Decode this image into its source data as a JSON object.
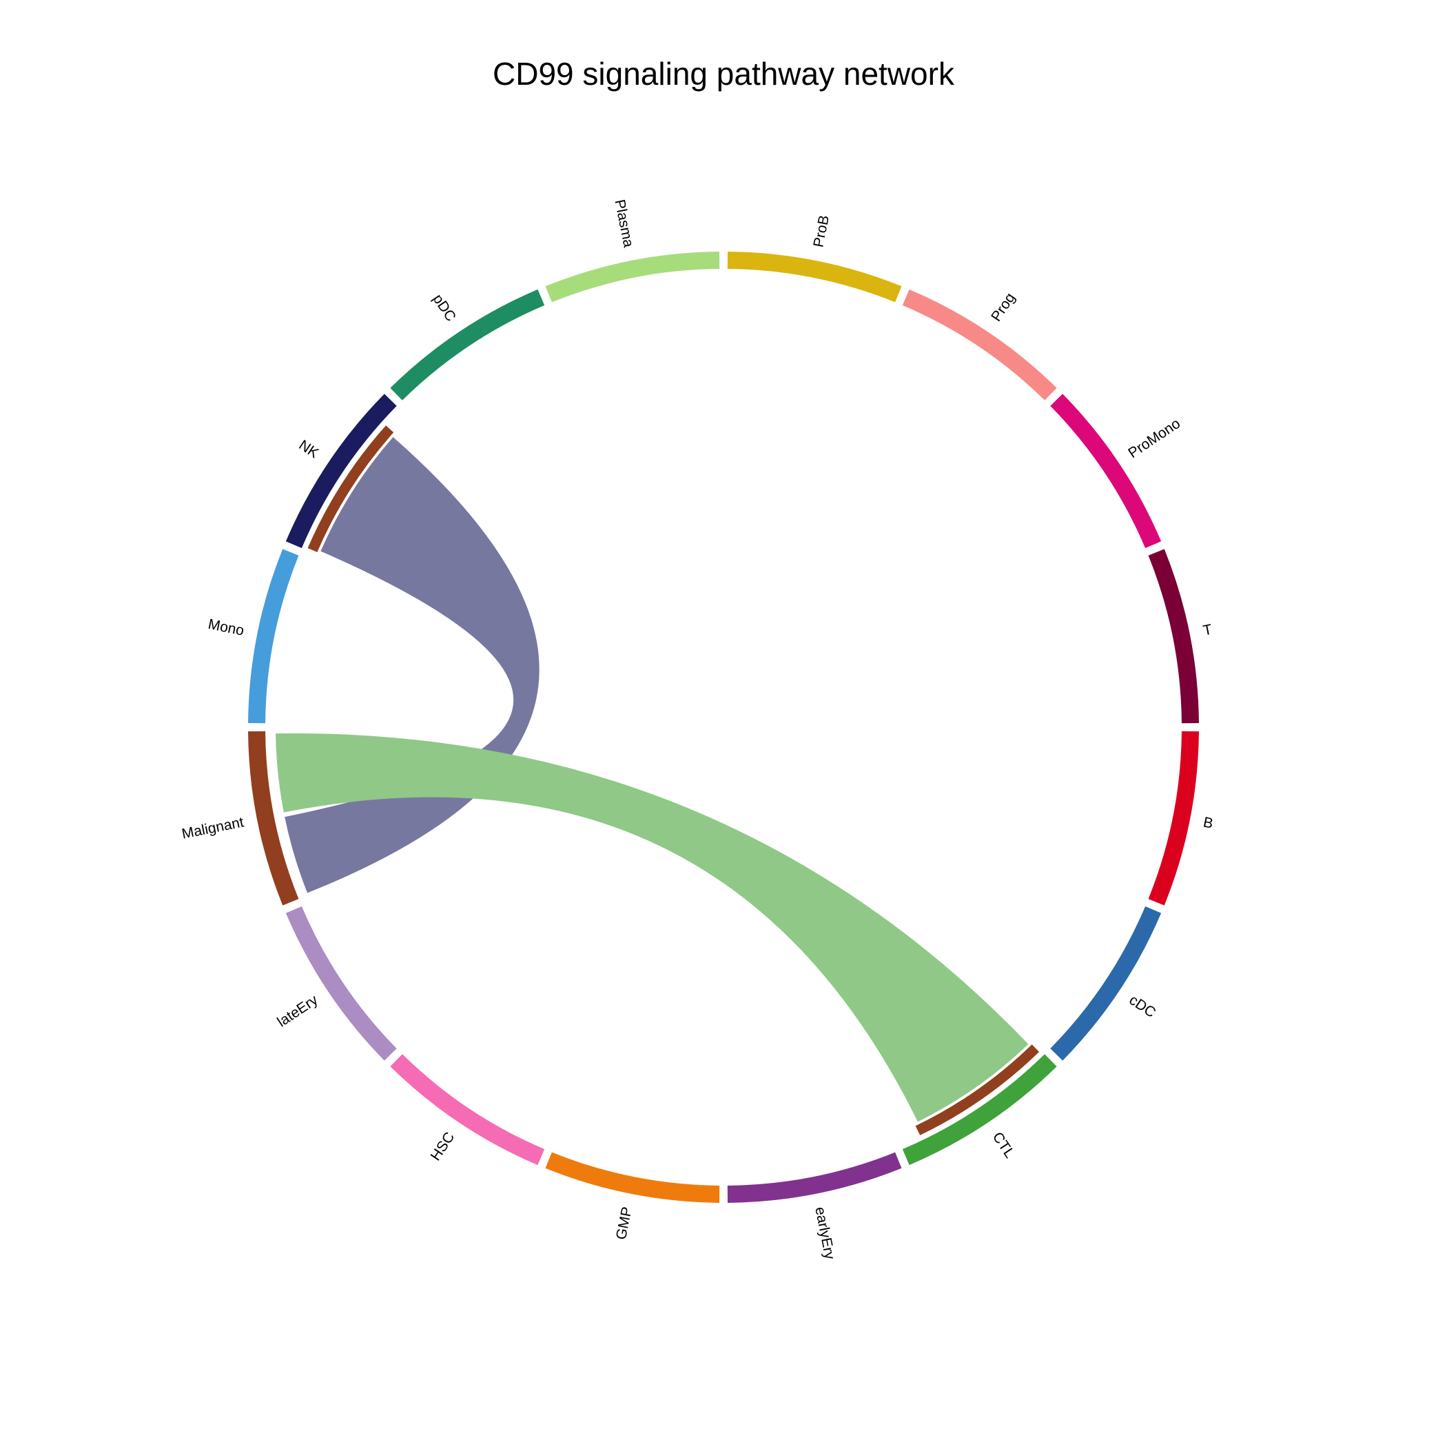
{
  "chart_data": {
    "type": "chord",
    "title": "CD99 signaling pathway network",
    "sectors": [
      {
        "name": "ProB",
        "color": "#DAB50F",
        "value": 1
      },
      {
        "name": "Prog",
        "color": "#F78A87",
        "value": 1
      },
      {
        "name": "ProMono",
        "color": "#DC087A",
        "value": 1
      },
      {
        "name": "T",
        "color": "#7A0036",
        "value": 1
      },
      {
        "name": "B",
        "color": "#DC001F",
        "value": 1
      },
      {
        "name": "cDC",
        "color": "#2B69AA",
        "value": 1
      },
      {
        "name": "CTL",
        "color": "#3FA23A",
        "value": 1
      },
      {
        "name": "earlyEry",
        "color": "#81328F",
        "value": 1
      },
      {
        "name": "GMP",
        "color": "#EF7B0C",
        "value": 1
      },
      {
        "name": "HSC",
        "color": "#F56BB4",
        "value": 1
      },
      {
        "name": "lateEry",
        "color": "#AB8CC3",
        "value": 1
      },
      {
        "name": "Malignant",
        "color": "#913F1E",
        "value": 1
      },
      {
        "name": "Mono",
        "color": "#459DDB",
        "value": 1
      },
      {
        "name": "NK",
        "color": "#1B1C5F",
        "value": 1
      },
      {
        "name": "pDC",
        "color": "#1E8D63",
        "value": 1
      },
      {
        "name": "Plasma",
        "color": "#A7DC7B",
        "value": 1
      }
    ],
    "links": [
      {
        "source": "Malignant",
        "target": "NK",
        "color": "#7778A0"
      },
      {
        "source": "Malignant",
        "target": "CTL",
        "color": "#8FC887"
      }
    ]
  }
}
